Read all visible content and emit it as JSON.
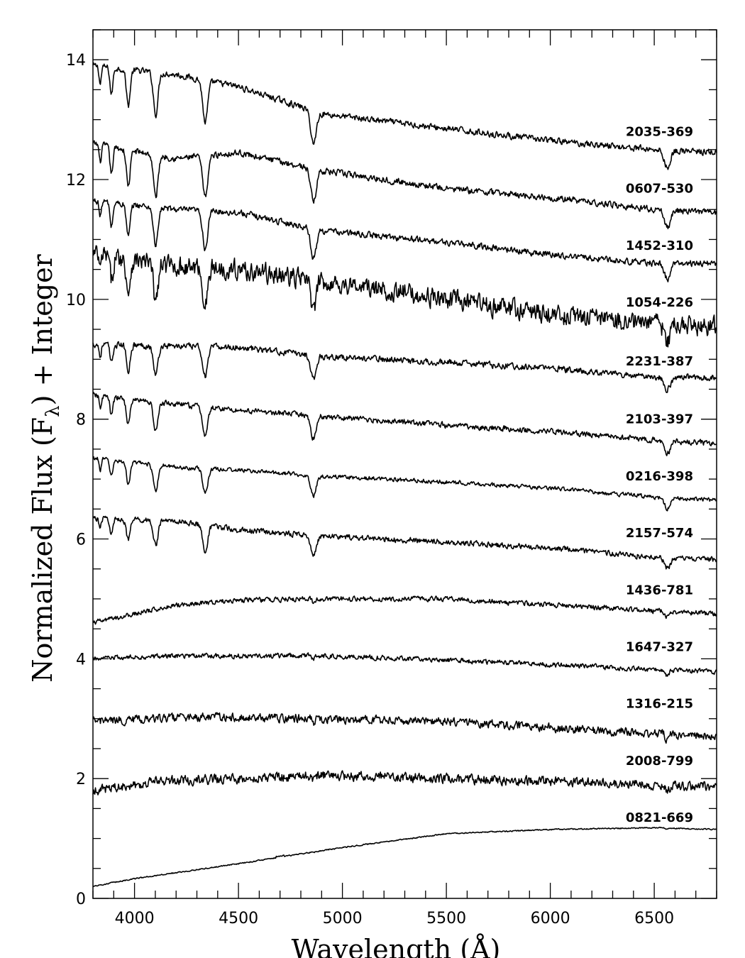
{
  "chart_data": {
    "type": "line",
    "xlabel": "Wavelength (Å)",
    "ylabel_parts": {
      "main": "Normalized Flux (F",
      "subscript": "λ",
      "tail": ") + Integer"
    },
    "xlim": [
      3800,
      6800
    ],
    "ylim": [
      0,
      14.5
    ],
    "xticks": [
      4000,
      4500,
      5000,
      5500,
      6000,
      6500
    ],
    "yticks": [
      0,
      2,
      4,
      6,
      8,
      10,
      12,
      14
    ],
    "grid": false,
    "line_color": "#000000",
    "series": [
      {
        "name": "2035-369",
        "offset": 12,
        "shape": "hot",
        "scale": 1.0,
        "noise": 0.045,
        "depth": 1.0,
        "label_y": 12.8,
        "knots": [
          [
            3800,
            1.9
          ],
          [
            4200,
            1.75
          ],
          [
            4500,
            1.55
          ],
          [
            4900,
            1.1
          ],
          [
            5500,
            0.85
          ],
          [
            6000,
            0.65
          ],
          [
            6500,
            0.5
          ],
          [
            6800,
            0.45
          ]
        ]
      },
      {
        "name": "0607-530",
        "offset": 11,
        "shape": "hot",
        "scale": 1.0,
        "noise": 0.045,
        "depth": 1.0,
        "label_y": 11.85,
        "knots": [
          [
            3800,
            1.6
          ],
          [
            4200,
            1.35
          ],
          [
            4500,
            1.45
          ],
          [
            4900,
            1.15
          ],
          [
            5500,
            0.85
          ],
          [
            6000,
            0.7
          ],
          [
            6500,
            0.5
          ],
          [
            6800,
            0.45
          ]
        ]
      },
      {
        "name": "1452-310",
        "offset": 10,
        "shape": "hot",
        "scale": 0.9,
        "noise": 0.045,
        "depth": 0.9,
        "label_y": 10.9,
        "knots": [
          [
            3800,
            1.65
          ],
          [
            4200,
            1.5
          ],
          [
            4500,
            1.45
          ],
          [
            4900,
            1.15
          ],
          [
            5500,
            0.95
          ],
          [
            6000,
            0.75
          ],
          [
            6500,
            0.6
          ],
          [
            6800,
            0.6
          ]
        ]
      },
      {
        "name": "1054-226",
        "offset": 9,
        "shape": "hot",
        "scale": 0.8,
        "noise": 0.14,
        "depth": 0.9,
        "label_y": 9.95,
        "knots": [
          [
            3800,
            1.75
          ],
          [
            4200,
            1.55
          ],
          [
            4500,
            1.5
          ],
          [
            4900,
            1.3
          ],
          [
            5500,
            1.0
          ],
          [
            6000,
            0.75
          ],
          [
            6500,
            0.6
          ],
          [
            6800,
            0.55
          ]
        ]
      },
      {
        "name": "2231-387",
        "offset": 8,
        "shape": "warm",
        "scale": 0.6,
        "noise": 0.045,
        "depth": 0.7,
        "label_y": 8.97,
        "knots": [
          [
            3800,
            1.25
          ],
          [
            4200,
            1.22
          ],
          [
            4500,
            1.2
          ],
          [
            4900,
            1.05
          ],
          [
            5500,
            0.95
          ],
          [
            6000,
            0.85
          ],
          [
            6500,
            0.7
          ],
          [
            6800,
            0.7
          ]
        ]
      },
      {
        "name": "2103-397",
        "offset": 7,
        "shape": "warm",
        "scale": 0.6,
        "noise": 0.04,
        "depth": 0.7,
        "label_y": 8.0,
        "knots": [
          [
            3800,
            1.4
          ],
          [
            4200,
            1.25
          ],
          [
            4500,
            1.15
          ],
          [
            4900,
            1.05
          ],
          [
            5500,
            0.9
          ],
          [
            6000,
            0.8
          ],
          [
            6500,
            0.65
          ],
          [
            6800,
            0.6
          ]
        ]
      },
      {
        "name": "0216-398",
        "offset": 6,
        "shape": "warm",
        "scale": 0.45,
        "noise": 0.03,
        "depth": 0.6,
        "label_y": 7.05,
        "knots": [
          [
            3800,
            1.35
          ],
          [
            4200,
            1.2
          ],
          [
            4500,
            1.15
          ],
          [
            4900,
            1.05
          ],
          [
            5500,
            0.95
          ],
          [
            6000,
            0.85
          ],
          [
            6500,
            0.7
          ],
          [
            6800,
            0.65
          ]
        ]
      },
      {
        "name": "2157-574",
        "offset": 5,
        "shape": "warm",
        "scale": 0.5,
        "noise": 0.04,
        "depth": 0.6,
        "label_y": 6.1,
        "knots": [
          [
            3800,
            1.35
          ],
          [
            4200,
            1.3
          ],
          [
            4500,
            1.15
          ],
          [
            4900,
            1.05
          ],
          [
            5500,
            0.95
          ],
          [
            6000,
            0.85
          ],
          [
            6500,
            0.7
          ],
          [
            6800,
            0.65
          ]
        ]
      },
      {
        "name": "1436-781",
        "offset": 4,
        "shape": "cool",
        "scale": 0.15,
        "noise": 0.035,
        "depth": 0.3,
        "label_y": 5.15,
        "knots": [
          [
            3800,
            0.6
          ],
          [
            4200,
            0.9
          ],
          [
            4500,
            0.98
          ],
          [
            4900,
            1.0
          ],
          [
            5500,
            1.0
          ],
          [
            6000,
            0.9
          ],
          [
            6500,
            0.8
          ],
          [
            6800,
            0.75
          ]
        ]
      },
      {
        "name": "1647-327",
        "offset": 3,
        "shape": "cool",
        "scale": 0.12,
        "noise": 0.035,
        "depth": 0.3,
        "label_y": 4.2,
        "knots": [
          [
            3800,
            1.0
          ],
          [
            4200,
            1.05
          ],
          [
            4500,
            1.05
          ],
          [
            4900,
            1.05
          ],
          [
            5500,
            0.98
          ],
          [
            6000,
            0.9
          ],
          [
            6500,
            0.82
          ],
          [
            6800,
            0.78
          ]
        ]
      },
      {
        "name": "1316-215",
        "offset": 2,
        "shape": "cool",
        "scale": 0.12,
        "noise": 0.06,
        "depth": 0.3,
        "label_y": 3.25,
        "knots": [
          [
            3800,
            0.95
          ],
          [
            4200,
            1.02
          ],
          [
            4500,
            1.02
          ],
          [
            4900,
            1.0
          ],
          [
            5500,
            0.95
          ],
          [
            6000,
            0.85
          ],
          [
            6500,
            0.75
          ],
          [
            6800,
            0.7
          ]
        ]
      },
      {
        "name": "2008-799",
        "offset": 1,
        "shape": "cool",
        "scale": 0.1,
        "noise": 0.07,
        "depth": 0.3,
        "label_y": 2.3,
        "knots": [
          [
            3800,
            0.8
          ],
          [
            4100,
            0.95
          ],
          [
            4500,
            1.0
          ],
          [
            4900,
            1.05
          ],
          [
            5500,
            1.0
          ],
          [
            6000,
            0.95
          ],
          [
            6500,
            0.9
          ],
          [
            6800,
            0.85
          ]
        ]
      },
      {
        "name": "0821-669",
        "offset": 0,
        "shape": "cold",
        "scale": 0.0,
        "noise": 0.008,
        "depth": 0.05,
        "label_y": 1.35,
        "knots": [
          [
            3800,
            0.2
          ],
          [
            4000,
            0.33
          ],
          [
            4500,
            0.58
          ],
          [
            5000,
            0.85
          ],
          [
            5500,
            1.08
          ],
          [
            6000,
            1.15
          ],
          [
            6500,
            1.18
          ],
          [
            6800,
            1.15
          ]
        ]
      }
    ]
  }
}
